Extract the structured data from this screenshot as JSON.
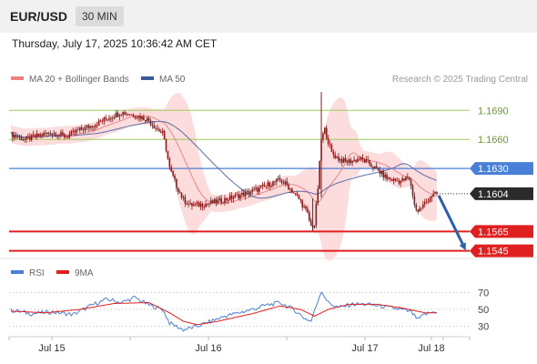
{
  "header": {
    "symbol": "EUR/USD",
    "timeframe": "30 MIN",
    "timestamp": "Thursday, July 17, 2025 10:36:42 AM CET"
  },
  "legend": {
    "ma20": "MA 20 + Bollinger Bands",
    "ma50": "MA 50",
    "credit": "Research © 2025 Trading Central",
    "ma20_color": "#f08080",
    "ma50_color": "#3a5a9a"
  },
  "chart_data": [
    {
      "type": "candlestick",
      "title": "",
      "ylim": [
        1.539,
        1.171
      ],
      "x_ticks": [
        "Jul 15",
        "Jul 16",
        "Jul 17",
        "Jul 18"
      ],
      "levels": [
        {
          "value": 1.169,
          "label": "1.1690",
          "color": "#9acd5a",
          "kind": "resistance"
        },
        {
          "value": 1.166,
          "label": "1.1660",
          "color": "#9acd5a",
          "kind": "resistance"
        },
        {
          "value": 1.163,
          "label": "1.1630",
          "color": "#4a7fd8",
          "kind": "pivot"
        },
        {
          "value": 1.1604,
          "label": "1.1604",
          "color": "#2b2b2b",
          "kind": "last-price"
        },
        {
          "value": 1.1565,
          "label": "1.1565",
          "color": "#e02020",
          "kind": "support"
        },
        {
          "value": 1.1545,
          "label": "1.1545",
          "color": "#e02020",
          "kind": "support"
        }
      ],
      "price_path": [
        [
          0,
          1.1665
        ],
        [
          8,
          1.166
        ],
        [
          16,
          1.1664
        ],
        [
          24,
          1.1667
        ],
        [
          32,
          1.1663
        ],
        [
          40,
          1.167
        ],
        [
          48,
          1.1675
        ],
        [
          56,
          1.1682
        ],
        [
          64,
          1.1688
        ],
        [
          72,
          1.1685
        ],
        [
          80,
          1.168
        ],
        [
          84,
          1.1672
        ],
        [
          88,
          1.1666
        ],
        [
          90,
          1.165
        ],
        [
          92,
          1.163
        ],
        [
          96,
          1.1612
        ],
        [
          100,
          1.1598
        ],
        [
          104,
          1.1592
        ],
        [
          112,
          1.1593
        ],
        [
          120,
          1.1596
        ],
        [
          128,
          1.16
        ],
        [
          136,
          1.1604
        ],
        [
          144,
          1.1609
        ],
        [
          150,
          1.1614
        ],
        [
          156,
          1.1618
        ],
        [
          160,
          1.1613
        ],
        [
          164,
          1.1605
        ],
        [
          168,
          1.1596
        ],
        [
          172,
          1.1583
        ],
        [
          174,
          1.157
        ],
        [
          176,
          1.1572
        ],
        [
          178,
          1.161
        ],
        [
          180,
          1.166
        ],
        [
          182,
          1.167
        ],
        [
          186,
          1.1646
        ],
        [
          190,
          1.164
        ],
        [
          194,
          1.1637
        ],
        [
          198,
          1.1638
        ],
        [
          202,
          1.164
        ],
        [
          206,
          1.1637
        ],
        [
          210,
          1.1632
        ],
        [
          214,
          1.1626
        ],
        [
          218,
          1.162
        ],
        [
          222,
          1.1618
        ],
        [
          226,
          1.1617
        ],
        [
          230,
          1.162
        ],
        [
          232,
          1.1613
        ],
        [
          234,
          1.1592
        ],
        [
          236,
          1.1586
        ],
        [
          240,
          1.1594
        ],
        [
          244,
          1.1602
        ],
        [
          247,
          1.1604
        ]
      ],
      "forecast_to": 1.1545
    },
    {
      "type": "line",
      "series": [
        {
          "name": "RSI",
          "color": "#4a7fd8"
        },
        {
          "name": "9MA",
          "color": "#e02020"
        }
      ],
      "y_ticks": [
        70,
        50,
        30
      ],
      "rsi_path": [
        [
          0,
          49
        ],
        [
          12,
          45
        ],
        [
          24,
          47
        ],
        [
          36,
          44
        ],
        [
          48,
          56
        ],
        [
          56,
          62
        ],
        [
          64,
          58
        ],
        [
          72,
          64
        ],
        [
          80,
          55
        ],
        [
          88,
          50
        ],
        [
          92,
          34
        ],
        [
          100,
          26
        ],
        [
          108,
          30
        ],
        [
          116,
          36
        ],
        [
          124,
          42
        ],
        [
          132,
          46
        ],
        [
          140,
          50
        ],
        [
          148,
          55
        ],
        [
          156,
          58
        ],
        [
          164,
          50
        ],
        [
          170,
          40
        ],
        [
          174,
          36
        ],
        [
          176,
          48
        ],
        [
          180,
          72
        ],
        [
          184,
          58
        ],
        [
          190,
          52
        ],
        [
          198,
          56
        ],
        [
          206,
          56
        ],
        [
          214,
          54
        ],
        [
          220,
          52
        ],
        [
          226,
          50
        ],
        [
          232,
          47
        ],
        [
          236,
          38
        ],
        [
          240,
          44
        ],
        [
          247,
          48
        ]
      ],
      "ma_path": [
        [
          0,
          48
        ],
        [
          20,
          46
        ],
        [
          40,
          50
        ],
        [
          60,
          57
        ],
        [
          80,
          58
        ],
        [
          92,
          46
        ],
        [
          100,
          36
        ],
        [
          108,
          32
        ],
        [
          120,
          36
        ],
        [
          140,
          45
        ],
        [
          156,
          54
        ],
        [
          168,
          50
        ],
        [
          176,
          42
        ],
        [
          184,
          50
        ],
        [
          196,
          56
        ],
        [
          212,
          56
        ],
        [
          226,
          52
        ],
        [
          240,
          46
        ],
        [
          247,
          46
        ]
      ]
    }
  ]
}
